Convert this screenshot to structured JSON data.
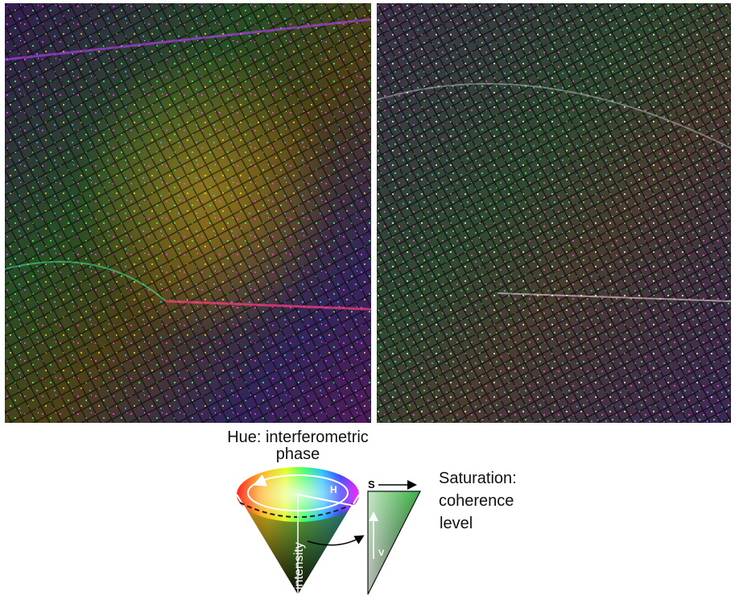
{
  "images": {
    "left": {
      "name": "interferogram-left"
    },
    "right": {
      "name": "interferogram-right"
    }
  },
  "legend": {
    "hue_label_line1": "Hue: interferometric",
    "hue_label_line2": "phase",
    "saturation_line1": "Saturation:",
    "saturation_line2": "coherence",
    "saturation_line3": "level",
    "letter_h": "H",
    "letter_s": "S",
    "letter_v": "V",
    "intensity_text": "intensity"
  },
  "colors": {
    "background": "#0c0c0c",
    "triangle_green": "#3cb043",
    "triangle_dark": "#0a2a0a"
  }
}
